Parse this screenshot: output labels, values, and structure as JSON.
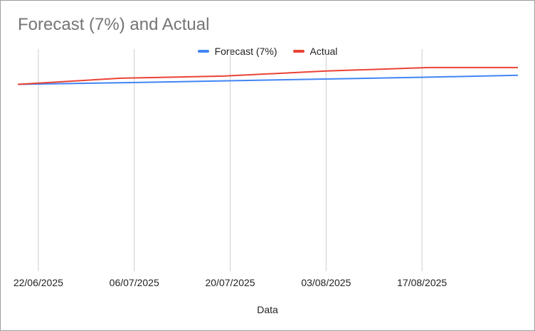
{
  "chart_data": {
    "type": "line",
    "title": "Forecast (7%) and Actual",
    "xlabel": "Data",
    "ylabel": "",
    "x": [
      "19/06/2025",
      "04/07/2025",
      "19/07/2025",
      "03/08/2025",
      "18/08/2025",
      "31/08/2025"
    ],
    "series": [
      {
        "name": "Forecast (7%)",
        "color": "#4285f4",
        "values": [
          100,
          100.6,
          101.3,
          102.0,
          102.7,
          103.4
        ]
      },
      {
        "name": "Actual",
        "color": "#ea4335",
        "values": [
          100,
          102.3,
          103.1,
          105.0,
          106.3,
          106.3
        ]
      }
    ],
    "ylim": [
      30,
      110
    ],
    "xlim": [
      "19/06/2025",
      "31/08/2025"
    ],
    "x_ticks": [
      "22/06/2025",
      "06/07/2025",
      "20/07/2025",
      "03/08/2025",
      "17/08/2025"
    ],
    "grid": "vertical",
    "legend": "top"
  }
}
